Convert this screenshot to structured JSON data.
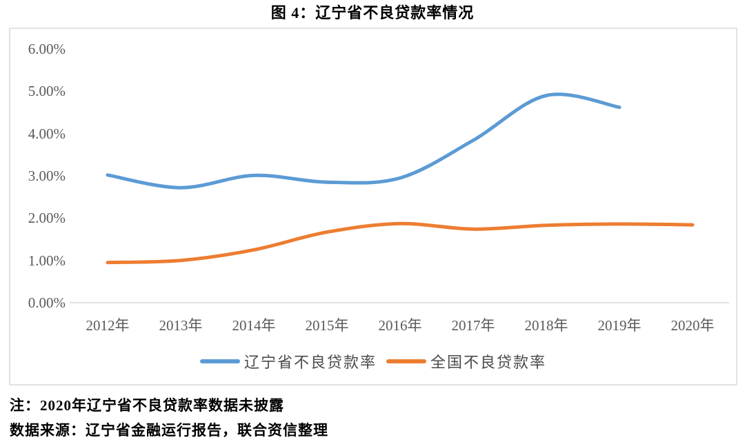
{
  "title": "图 4：辽宁省不良贷款率情况",
  "chart_data": {
    "type": "line",
    "title": "图 4：辽宁省不良贷款率情况",
    "categories": [
      "2012年",
      "2013年",
      "2014年",
      "2015年",
      "2016年",
      "2017年",
      "2018年",
      "2019年",
      "2020年"
    ],
    "series": [
      {
        "key": "liaoning-npl-rate",
        "name": "辽宁省不良贷款率",
        "color": "#5B9BD5",
        "values": [
          3.02,
          2.72,
          3.01,
          2.85,
          2.95,
          3.84,
          4.9,
          4.62,
          null
        ]
      },
      {
        "key": "national-npl-rate",
        "name": "全国不良贷款率",
        "color": "#ED7D31",
        "values": [
          0.95,
          1.0,
          1.25,
          1.67,
          1.87,
          1.74,
          1.83,
          1.86,
          1.84
        ]
      }
    ],
    "xlabel": "",
    "ylabel": "",
    "ylim": [
      0,
      6
    ],
    "ytick_step": 1,
    "yticks": [
      "6.00%",
      "5.00%",
      "4.00%",
      "3.00%",
      "2.00%",
      "1.00%",
      "0.00%"
    ],
    "grid": false,
    "smooth": true,
    "legend_position": "bottom"
  },
  "notes": {
    "note": "注：2020年辽宁省不良贷款率数据未披露",
    "source": "数据来源：辽宁省金融运行报告，联合资信整理"
  },
  "colors": {
    "liaoning_line": "#5B9BD5",
    "national_line": "#ED7D31",
    "axis_text": "#595959",
    "chart_border": "#E2E2E2",
    "axis_line": "#D9D9D9",
    "title_text": "#000000"
  }
}
